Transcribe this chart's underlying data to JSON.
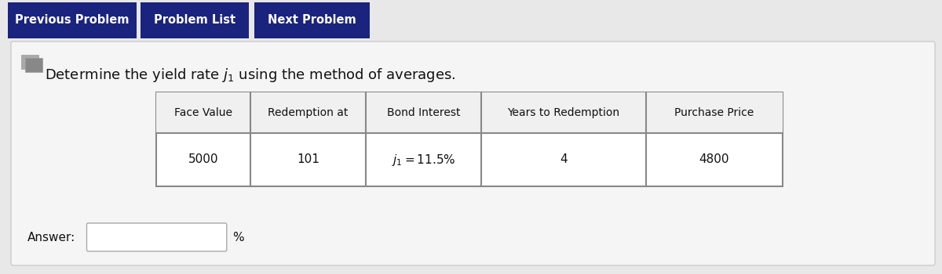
{
  "nav_buttons": [
    "Previous Problem",
    "Problem List",
    "Next Problem"
  ],
  "nav_bg_color": "#1a237e",
  "nav_text_color": "#ffffff",
  "table_headers": [
    "Face Value",
    "Redemption at",
    "Bond Interest",
    "Years to Redemption",
    "Purchase Price"
  ],
  "table_values": [
    "5000",
    "101",
    "$j_1 = 11.5\\%$",
    "4",
    "4800"
  ],
  "answer_label": "Answer:",
  "percent_label": "%",
  "bg_color": "#e8e8e8",
  "panel_color": "#f5f5f5",
  "panel_border": "#cccccc",
  "table_border": "#888888",
  "table_header_bg": "#f0f0f0",
  "table_cell_bg": "#ffffff",
  "font_size_nav": 10.5,
  "font_size_title": 13,
  "font_size_table_header": 10,
  "font_size_table_data": 11,
  "font_size_answer": 11,
  "icon_color1": "#aaaaaa",
  "icon_color2": "#888888"
}
